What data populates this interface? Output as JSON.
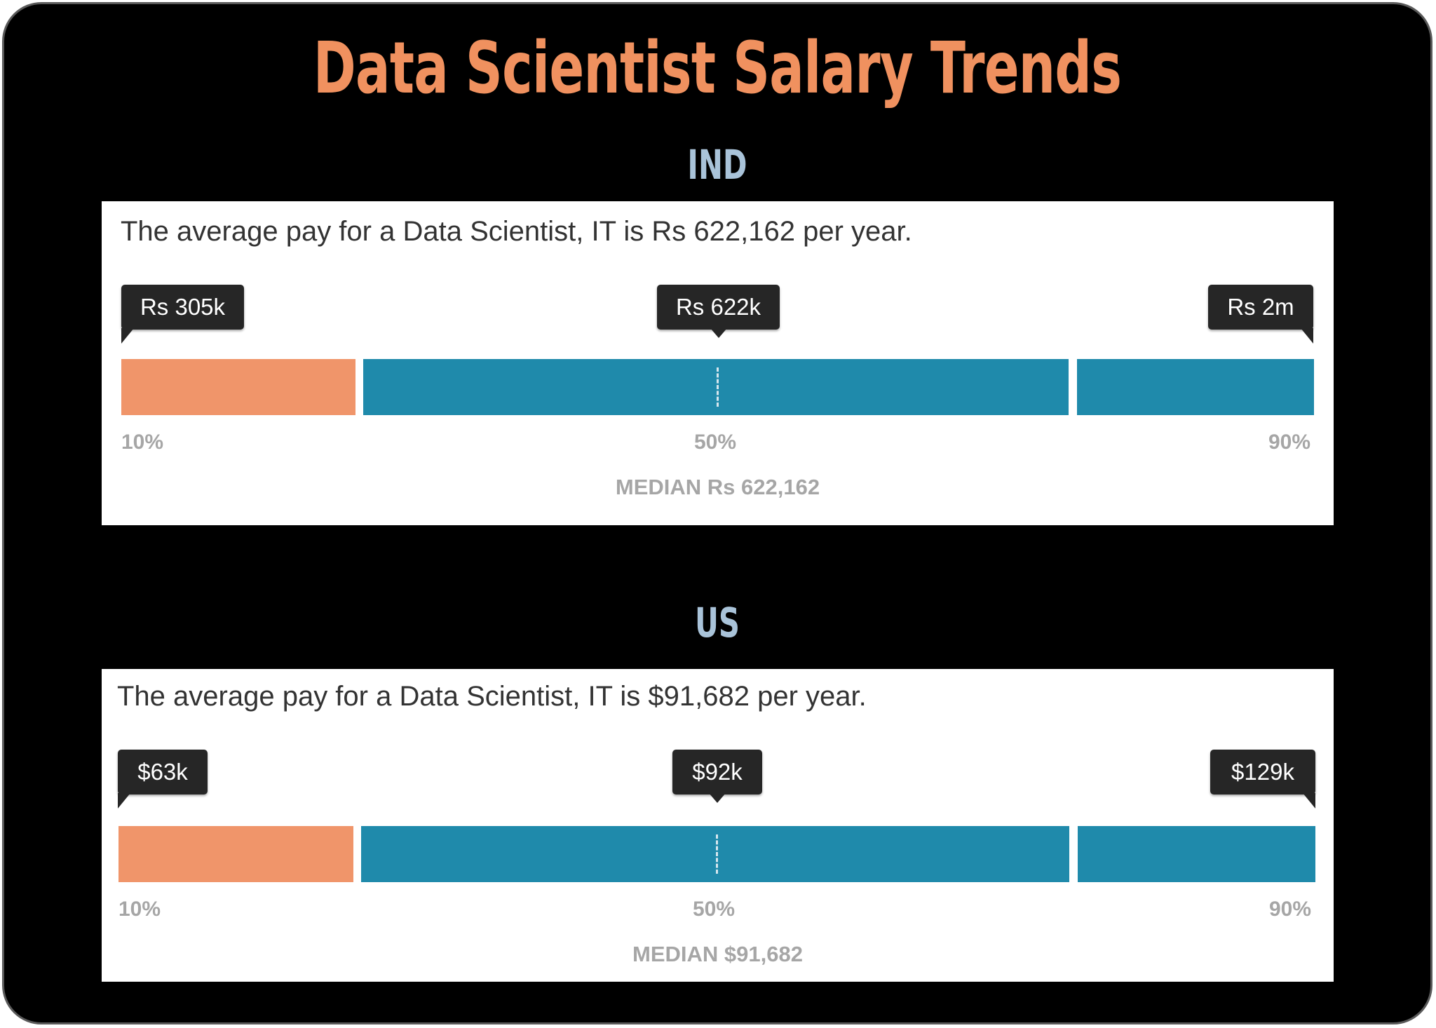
{
  "title": "Data Scientist Salary Trends",
  "colors": {
    "title": "#f0915f",
    "country_label": "#a9c3d9",
    "low_segment": "#f0956a",
    "mid_segment": "#1f8aab",
    "high_segment": "#1f8aab",
    "tag_background": "#262626",
    "percent_label": "#a6a6a6"
  },
  "chart_data": [
    {
      "type": "bar",
      "country": "IND",
      "summary": "The average pay for a Data Scientist, IT is Rs 622,162 per year.",
      "percentiles": [
        "10%",
        "50%",
        "90%"
      ],
      "value_labels": [
        "Rs 305k",
        "Rs 622k",
        "Rs 2m"
      ],
      "median_label": "MEDIAN Rs 622,162"
    },
    {
      "type": "bar",
      "country": "US",
      "summary": "The average pay for a Data Scientist, IT is $91,682 per year.",
      "percentiles": [
        "10%",
        "50%",
        "90%"
      ],
      "value_labels": [
        "$63k",
        "$92k",
        "$129k"
      ],
      "median_label": "MEDIAN $91,682"
    }
  ]
}
